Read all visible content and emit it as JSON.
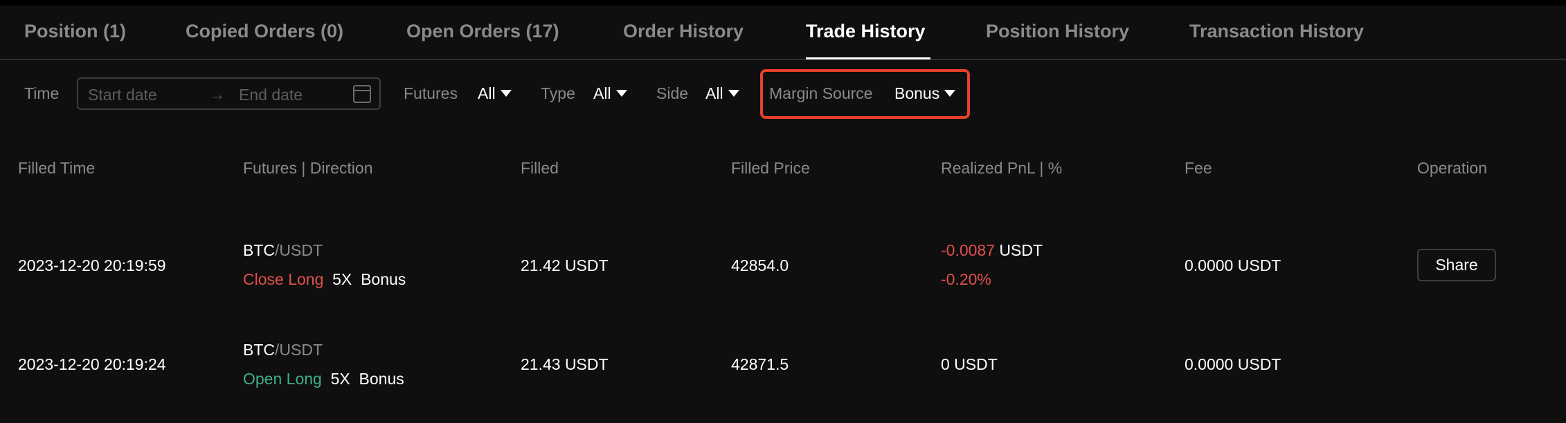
{
  "tabs": [
    {
      "label": "Position (1)"
    },
    {
      "label": "Copied Orders (0)"
    },
    {
      "label": "Open Orders (17)"
    },
    {
      "label": "Order History"
    },
    {
      "label": "Trade History",
      "active": true
    },
    {
      "label": "Position History"
    },
    {
      "label": "Transaction History"
    }
  ],
  "filters": {
    "time_label": "Time",
    "start_placeholder": "Start date",
    "end_placeholder": "End date",
    "futures_label": "Futures",
    "futures_value": "All",
    "type_label": "Type",
    "type_value": "All",
    "side_label": "Side",
    "side_value": "All",
    "margin_label": "Margin Source",
    "margin_value": "Bonus",
    "highlight_color": "#e8402a"
  },
  "table": {
    "headers": [
      "Filled Time",
      "Futures | Direction",
      "Filled",
      "Filled Price",
      "Realized PnL | %",
      "Fee",
      "Operation"
    ],
    "rows": [
      {
        "time": "2023-12-20 20:19:59",
        "base": "BTC",
        "quote": "/USDT",
        "direction": "Close Long",
        "leverage": "5X",
        "margin": "Bonus",
        "filled": "21.42  USDT",
        "price": "42854.0",
        "pnl_value": "-0.0087",
        "pnl_unit": " USDT",
        "pnl_pct": "-0.20%",
        "fee": "0.0000 USDT",
        "operation": "Share"
      },
      {
        "time": "2023-12-20 20:19:24",
        "base": "BTC",
        "quote": "/USDT",
        "direction": "Open Long",
        "leverage": "5X",
        "margin": "Bonus",
        "filled": "21.43  USDT",
        "price": "42871.5",
        "pnl_value": "0 USDT",
        "fee": "0.0000 USDT"
      }
    ]
  },
  "colors": {
    "loss": "#e0504d",
    "long_open": "#3fae8c",
    "background": "#0f0f0f"
  }
}
